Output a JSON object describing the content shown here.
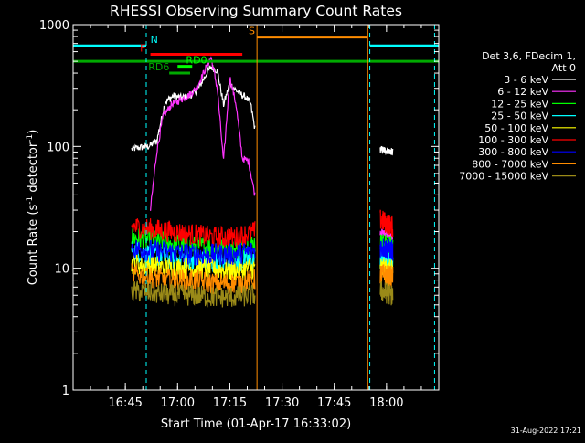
{
  "chart_data": {
    "type": "line",
    "title": "RHESSI Observing Summary Count Rates",
    "xlabel": "Start Time (01-Apr-17 16:33:02)",
    "ylabel": "Count Rate (s",
    "ylabel_sup": "-1",
    "ylabel_mid": " detector",
    "ylabel_end": ")",
    "y_scale": "log",
    "ylim": [
      1,
      1000
    ],
    "xlim_minutes": [
      16.5,
      18.25
    ],
    "x_ticks": [
      {
        "label": "16:45",
        "t": 16.75
      },
      {
        "label": "17:00",
        "t": 17.0
      },
      {
        "label": "17:15",
        "t": 17.25
      },
      {
        "label": "17:30",
        "t": 17.5
      },
      {
        "label": "17:45",
        "t": 17.75
      },
      {
        "label": "18:00",
        "t": 18.0
      }
    ],
    "y_ticks": [
      {
        "label": "1",
        "v": 1
      },
      {
        "label": "10",
        "v": 10
      },
      {
        "label": "100",
        "v": 100
      },
      {
        "label": "1000",
        "v": 1000
      }
    ],
    "legend_header": [
      "Det 3,6, FDecim 1,",
      "Att 0"
    ],
    "legend_position": "right",
    "series": [
      {
        "name": "3 - 6 keV",
        "color": "#ffffff",
        "segments": [
          {
            "t": [
              16.78,
              16.82,
              16.86,
              16.9,
              16.94,
              16.98,
              17.02,
              17.06,
              17.1,
              17.14,
              17.16,
              17.19,
              17.22,
              17.25,
              17.27,
              17.3,
              17.33,
              17.35,
              17.37
            ],
            "v": [
              95,
              98,
              100,
              110,
              230,
              260,
              250,
              260,
              300,
              400,
              450,
              420,
              220,
              330,
              300,
              270,
              250,
              220,
              140
            ]
          },
          {
            "t": [
              17.97,
              18.03
            ],
            "v": [
              95,
              90
            ]
          }
        ]
      },
      {
        "name": "6 - 12 keV",
        "color": "#ff33ff",
        "segments": [
          {
            "t": [
              16.87,
              16.9,
              16.93,
              16.97,
              17.01,
              17.05,
              17.09,
              17.13,
              17.16,
              17.19,
              17.22,
              17.25,
              17.28,
              17.31,
              17.34,
              17.37
            ],
            "v": [
              30,
              90,
              175,
              220,
              240,
              260,
              300,
              420,
              540,
              300,
              75,
              370,
              220,
              80,
              75,
              40
            ]
          },
          {
            "t": [
              17.97,
              18.03
            ],
            "v": [
              20,
              18
            ]
          }
        ]
      },
      {
        "name": "12 - 25 keV",
        "color": "#00ff00",
        "segments": [
          {
            "t": [
              16.78,
              16.87,
              16.97,
              17.07,
              17.17,
              17.27,
              17.37
            ],
            "v": [
              18,
              17,
              16,
              15,
              15,
              14,
              16
            ]
          },
          {
            "t": [
              17.97,
              18.03
            ],
            "v": [
              16,
              15
            ]
          }
        ]
      },
      {
        "name": "25 - 50 keV",
        "color": "#00ffff",
        "segments": [
          {
            "t": [
              16.78,
              16.87,
              16.97,
              17.07,
              17.17,
              17.27,
              17.37
            ],
            "v": [
              14,
              13,
              12,
              12,
              11,
              11,
              12
            ]
          },
          {
            "t": [
              17.97,
              18.03
            ],
            "v": [
              12,
              11
            ]
          }
        ]
      },
      {
        "name": "50 - 100 keV",
        "color": "#ffff00",
        "segments": [
          {
            "t": [
              16.78,
              16.87,
              16.97,
              17.07,
              17.17,
              17.27,
              17.37
            ],
            "v": [
              11,
              10.5,
              10,
              10,
              10,
              9.5,
              10
            ]
          },
          {
            "t": [
              17.97,
              18.03
            ],
            "v": [
              10,
              9.5
            ]
          }
        ]
      },
      {
        "name": "100 - 300 keV",
        "color": "#ff0000",
        "segments": [
          {
            "t": [
              16.78,
              16.87,
              16.97,
              17.07,
              17.17,
              17.27,
              17.37
            ],
            "v": [
              22,
              21,
              20,
              19,
              18,
              18,
              20
            ]
          },
          {
            "t": [
              17.97,
              18.03
            ],
            "v": [
              25,
              22
            ]
          }
        ]
      },
      {
        "name": "300 - 800 keV",
        "color": "#0000ff",
        "segments": [
          {
            "t": [
              16.78,
              16.87,
              16.97,
              17.07,
              17.17,
              17.27,
              17.37
            ],
            "v": [
              14.5,
              14,
              13.5,
              13,
              13,
              13,
              14
            ]
          },
          {
            "t": [
              17.97,
              18.03
            ],
            "v": [
              15,
              14
            ]
          }
        ]
      },
      {
        "name": "800 - 7000 keV",
        "color": "#ff8c00",
        "segments": [
          {
            "t": [
              16.78,
              16.87,
              16.97,
              17.07,
              17.17,
              17.27,
              17.37
            ],
            "v": [
              9,
              8.5,
              8,
              8,
              7.5,
              7.5,
              8
            ]
          },
          {
            "t": [
              17.97,
              18.03
            ],
            "v": [
              9,
              8.5
            ]
          }
        ]
      },
      {
        "name": "7000 - 15000 keV",
        "color": "#9a8a18",
        "segments": [
          {
            "t": [
              16.78,
              16.87,
              16.97,
              17.07,
              17.17,
              17.27,
              17.37
            ],
            "v": [
              6.5,
              6.3,
              6,
              6,
              5.8,
              5.8,
              6
            ]
          },
          {
            "t": [
              17.97,
              18.03
            ],
            "v": [
              6.5,
              6
            ]
          }
        ]
      }
    ],
    "state_bars": [
      {
        "label": "N",
        "color": "#00ffff",
        "segments": [
          [
            16.5,
            16.85
          ],
          [
            17.92,
            18.25
          ]
        ],
        "level": 670,
        "label_at": 16.87
      },
      {
        "label": "F",
        "color": "#ff0000",
        "segments": [
          [
            16.87,
            17.31
          ]
        ],
        "level": 570,
        "label_at": 16.82
      },
      {
        "label": "RD0",
        "color": "#00ff00",
        "segments": [
          [
            17.0,
            17.07
          ]
        ],
        "level": 455,
        "label_at": 17.04
      },
      {
        "label": "RD6",
        "color": "#00aa00",
        "segments": [
          [
            16.96,
            17.06
          ]
        ],
        "level": 400,
        "label_at": 16.86
      },
      {
        "label": "S",
        "color": "#ff8c00",
        "segments": [
          [
            17.38,
            17.91
          ]
        ],
        "level": 790,
        "label_at": 17.34
      }
    ],
    "horizontal_lines": [
      {
        "color": "#00aa00",
        "value": 500,
        "t_from": 16.5,
        "t_to": 18.25
      }
    ],
    "vertical_lines": [
      {
        "color": "#00ffff",
        "t": 16.85,
        "dashed": true
      },
      {
        "color": "#00ffff",
        "t": 17.92,
        "dashed": true
      },
      {
        "color": "#00ffff",
        "t": 18.23,
        "dashed": true
      },
      {
        "color": "#ff8c00",
        "t": 17.38,
        "dashed": false
      },
      {
        "color": "#ff8c00",
        "t": 17.91,
        "dashed": false
      },
      {
        "color": "#00ffff",
        "t": 16.5,
        "dashed": false
      }
    ],
    "grid": false
  },
  "footer": {
    "date_stamp": "31-Aug-2022 17:21"
  }
}
